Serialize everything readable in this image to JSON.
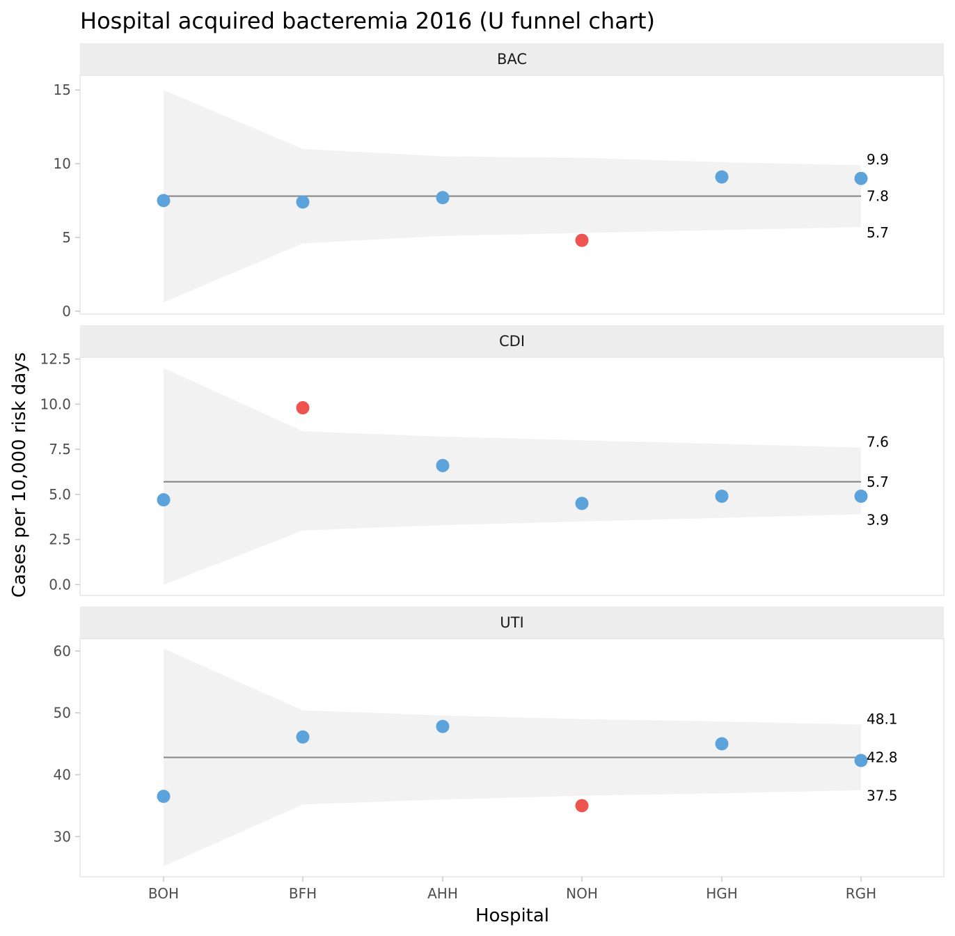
{
  "chart_data": {
    "type": "scatter",
    "title": "Hospital acquired bacteremia 2016 (U funnel chart)",
    "xlabel": "Hospital",
    "ylabel": "Cases per 10,000 risk days",
    "categories": [
      "BOH",
      "BFH",
      "AHH",
      "NOH",
      "HGH",
      "RGH"
    ],
    "colors": {
      "in_control": "#5da3db",
      "outlier": "#ef5350",
      "band": "#f2f2f2",
      "center_line": "#8c8c8c",
      "strip": "#ededed"
    },
    "panels": [
      {
        "name": "BAC",
        "ylim": [
          -0.2,
          16.0
        ],
        "yticks": [
          0,
          5,
          10,
          15
        ],
        "ytick_labels": [
          "0",
          "5",
          "10",
          "15"
        ],
        "center": 7.8,
        "upper": [
          15.0,
          11.0,
          10.5,
          10.4,
          10.1,
          9.9
        ],
        "lower": [
          0.6,
          4.6,
          5.1,
          5.3,
          5.5,
          5.7
        ],
        "values": [
          7.5,
          7.4,
          7.7,
          4.8,
          9.1,
          9.0
        ],
        "outlier": [
          false,
          false,
          false,
          true,
          false,
          false
        ],
        "labels": {
          "upper": "9.9",
          "center": "7.8",
          "lower": "5.7"
        }
      },
      {
        "name": "CDI",
        "ylim": [
          -0.6,
          12.6
        ],
        "yticks": [
          0.0,
          2.5,
          5.0,
          7.5,
          10.0,
          12.5
        ],
        "ytick_labels": [
          "0.0",
          "2.5",
          "5.0",
          "7.5",
          "10.0",
          "12.5"
        ],
        "center": 5.7,
        "upper": [
          12.0,
          8.5,
          8.2,
          8.0,
          7.8,
          7.6
        ],
        "lower": [
          0.0,
          3.0,
          3.3,
          3.5,
          3.7,
          3.9
        ],
        "values": [
          4.7,
          9.8,
          6.6,
          4.5,
          4.9,
          4.9
        ],
        "outlier": [
          false,
          true,
          false,
          false,
          false,
          false
        ],
        "labels": {
          "upper": "7.6",
          "center": "5.7",
          "lower": "3.9"
        }
      },
      {
        "name": "UTI",
        "ylim": [
          23.5,
          62.0
        ],
        "yticks": [
          30,
          40,
          50,
          60
        ],
        "ytick_labels": [
          "30",
          "40",
          "50",
          "60"
        ],
        "center": 42.8,
        "upper": [
          60.4,
          50.4,
          49.6,
          49.0,
          48.6,
          48.1
        ],
        "lower": [
          25.2,
          35.2,
          36.0,
          36.6,
          37.0,
          37.5
        ],
        "values": [
          36.5,
          46.1,
          47.8,
          35.0,
          45.0,
          42.3
        ],
        "outlier": [
          false,
          false,
          false,
          true,
          false,
          false
        ],
        "labels": {
          "upper": "48.1",
          "center": "42.8",
          "lower": "37.5"
        }
      }
    ]
  }
}
